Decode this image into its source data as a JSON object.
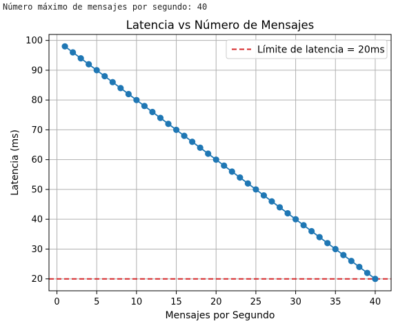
{
  "console": {
    "output_line": "Número máximo de mensajes por segundo: 40"
  },
  "colors": {
    "series": "#1f77b4",
    "threshold": "#d62728",
    "grid": "#b0b0b0",
    "axes": "#000000"
  },
  "chart_data": {
    "type": "line",
    "title": "Latencia vs Número de Mensajes",
    "xlabel": "Mensajes por Segundo",
    "ylabel": "Latencia (ms)",
    "xlim": [
      -1,
      42
    ],
    "ylim": [
      16,
      102
    ],
    "xticks": [
      0,
      5,
      10,
      15,
      20,
      25,
      30,
      35,
      40
    ],
    "yticks": [
      20,
      30,
      40,
      50,
      60,
      70,
      80,
      90,
      100
    ],
    "grid": true,
    "legend_position": "top-right",
    "series": [
      {
        "marker": "circle",
        "x": [
          1,
          2,
          3,
          4,
          5,
          6,
          7,
          8,
          9,
          10,
          11,
          12,
          13,
          14,
          15,
          16,
          17,
          18,
          19,
          20,
          21,
          22,
          23,
          24,
          25,
          26,
          27,
          28,
          29,
          30,
          31,
          32,
          33,
          34,
          35,
          36,
          37,
          38,
          39,
          40
        ],
        "y": [
          98,
          96,
          94,
          92,
          90,
          88,
          86,
          84,
          82,
          80,
          78,
          76,
          74,
          72,
          70,
          68,
          66,
          64,
          62,
          60,
          58,
          56,
          54,
          52,
          50,
          48,
          46,
          44,
          42,
          40,
          38,
          36,
          34,
          32,
          30,
          28,
          26,
          24,
          22,
          20
        ]
      }
    ],
    "hlines": [
      {
        "name": "Límite de latencia = 20ms",
        "y": 20,
        "style": "dashed"
      }
    ]
  }
}
